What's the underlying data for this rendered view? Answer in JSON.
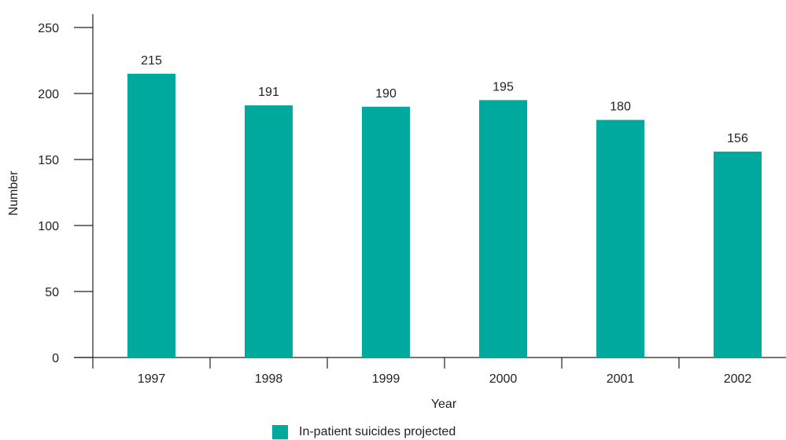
{
  "chart_data": {
    "type": "bar",
    "categories": [
      "1997",
      "1998",
      "1999",
      "2000",
      "2001",
      "2002"
    ],
    "series": [
      {
        "name": "In-patient suicides projected",
        "values": [
          215,
          191,
          190,
          195,
          180,
          156
        ],
        "color": "#00a99d"
      }
    ],
    "data_labels": [
      "215",
      "191",
      "190",
      "195",
      "180",
      "156"
    ],
    "xlabel": "Year",
    "ylabel": "Number",
    "ylim": [
      0,
      250
    ],
    "yticks": [
      0,
      50,
      100,
      150,
      200,
      250
    ],
    "grid": false,
    "legend_position": "bottom"
  }
}
